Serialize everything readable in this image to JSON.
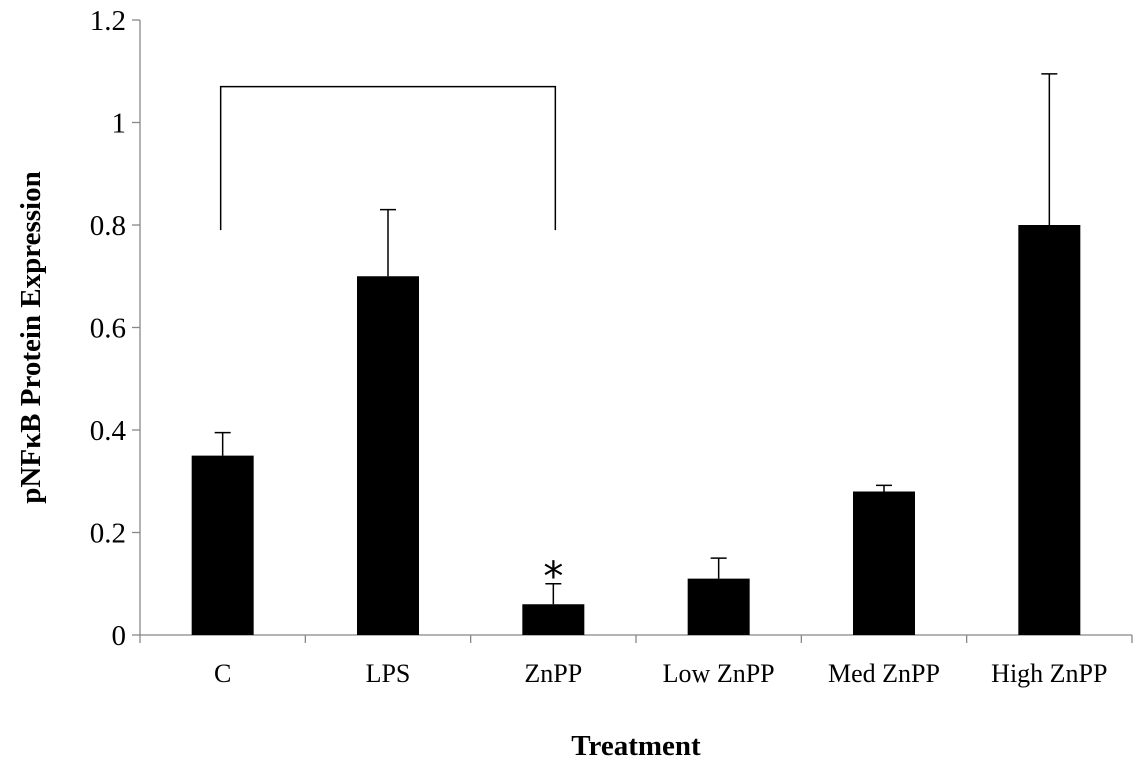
{
  "chart_data": {
    "type": "bar",
    "title": "",
    "xlabel": "Treatment",
    "ylabel": "pNFκB Protein Expression",
    "categories": [
      "C",
      "LPS",
      "ZnPP",
      "Low ZnPP",
      "Med ZnPP",
      "High ZnPP"
    ],
    "values": [
      0.35,
      0.7,
      0.06,
      0.11,
      0.28,
      0.8
    ],
    "error_plus": [
      0.045,
      0.13,
      0.04,
      0.04,
      0.012,
      0.295
    ],
    "ylim": [
      0,
      1.2
    ],
    "yticks": [
      "0",
      "0.2",
      "0.4",
      "0.6",
      "0.8",
      "1",
      "1.2"
    ],
    "bar_color": "#000000",
    "grid": false,
    "legend": "none",
    "annotations": [
      {
        "type": "significance-marker",
        "text": "*",
        "category": "ZnPP"
      },
      {
        "type": "comparison-bracket",
        "from": "C",
        "to": "ZnPP",
        "y": 1.07,
        "drop_to": 0.79
      }
    ]
  }
}
